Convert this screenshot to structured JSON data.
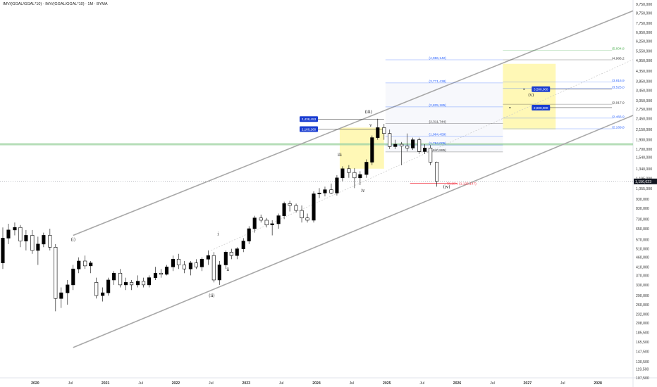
{
  "title": "IMV/(GGAL/GGAL*10) · IMV/(GGAL/GGAL*10) · 1M · BYMA",
  "chart_data": {
    "type": "candlestick",
    "y_scale": "log",
    "ylim": [
      107500,
      9750000
    ],
    "y_ticks": [
      "9,750,000",
      "8,750,000",
      "7,750,000",
      "6,950,000",
      "6,250,000",
      "5,550,000",
      "4,950,000",
      "4,350,000",
      "3,850,000",
      "3,450,000",
      "3,050,000",
      "2,750,000",
      "2,450,000",
      "2,150,000",
      "1,900,000",
      "1,700,000",
      "1,540,000",
      "1,340,000",
      "1,195,000",
      "1,055,000",
      "930,000",
      "830,000",
      "730,000",
      "650,000",
      "570,000",
      "510,000",
      "460,000",
      "410,000",
      "370,000",
      "330,000",
      "290,000",
      "260,000",
      "232,000",
      "208,000",
      "185,500",
      "165,500",
      "147,500",
      "130,500",
      "119,500",
      "107,500"
    ],
    "y_tick_values": [
      9750000,
      8750000,
      7750000,
      6950000,
      6250000,
      5550000,
      4950000,
      4350000,
      3850000,
      3450000,
      3050000,
      2750000,
      2450000,
      2150000,
      1900000,
      1700000,
      1540000,
      1340000,
      1195000,
      1055000,
      930000,
      830000,
      730000,
      650000,
      570000,
      510000,
      460000,
      410000,
      370000,
      330000,
      290000,
      260000,
      232000,
      208000,
      185500,
      165500,
      147500,
      130500,
      119500,
      107500
    ],
    "x_ticks": [
      {
        "label": "2020",
        "t": 2020.0,
        "year": true
      },
      {
        "label": "Jul",
        "t": 2020.5
      },
      {
        "label": "2021",
        "t": 2021.0,
        "year": true
      },
      {
        "label": "Jul",
        "t": 2021.5
      },
      {
        "label": "2022",
        "t": 2022.0,
        "year": true
      },
      {
        "label": "Jul",
        "t": 2022.5
      },
      {
        "label": "2023",
        "t": 2023.0,
        "year": true
      },
      {
        "label": "Jul",
        "t": 2023.5
      },
      {
        "label": "2024",
        "t": 2024.0,
        "year": true
      },
      {
        "label": "Jul",
        "t": 2024.5
      },
      {
        "label": "2025",
        "t": 2025.0,
        "year": true
      },
      {
        "label": "Jul",
        "t": 2025.5
      },
      {
        "label": "2026",
        "t": 2026.0,
        "year": true
      },
      {
        "label": "Jul",
        "t": 2026.5
      },
      {
        "label": "2027",
        "t": 2027.0,
        "year": true
      },
      {
        "label": "Jul",
        "t": 2027.5
      },
      {
        "label": "2028",
        "t": 2028.0,
        "year": true
      }
    ],
    "last_price": {
      "label": "1,150,023",
      "value": 1150023
    },
    "green_line": 1800000,
    "candles": [
      {
        "t": 2019.54,
        "o": 430000,
        "h": 660000,
        "l": 400000,
        "c": 580000
      },
      {
        "t": 2019.62,
        "o": 580000,
        "h": 690000,
        "l": 540000,
        "c": 640000
      },
      {
        "t": 2019.71,
        "o": 640000,
        "h": 700000,
        "l": 600000,
        "c": 660000
      },
      {
        "t": 2019.79,
        "o": 660000,
        "h": 680000,
        "l": 520000,
        "c": 560000
      },
      {
        "t": 2019.87,
        "o": 560000,
        "h": 640000,
        "l": 500000,
        "c": 600000
      },
      {
        "t": 2019.96,
        "o": 600000,
        "h": 640000,
        "l": 480000,
        "c": 500000
      },
      {
        "t": 2020.04,
        "o": 500000,
        "h": 590000,
        "l": 420000,
        "c": 540000
      },
      {
        "t": 2020.12,
        "o": 540000,
        "h": 620000,
        "l": 520000,
        "c": 600000
      },
      {
        "t": 2020.21,
        "o": 600000,
        "h": 650000,
        "l": 500000,
        "c": 520000
      },
      {
        "t": 2020.29,
        "o": 520000,
        "h": 540000,
        "l": 240000,
        "c": 280000
      },
      {
        "t": 2020.37,
        "o": 280000,
        "h": 320000,
        "l": 250000,
        "c": 300000
      },
      {
        "t": 2020.46,
        "o": 300000,
        "h": 350000,
        "l": 260000,
        "c": 330000
      },
      {
        "t": 2020.54,
        "o": 330000,
        "h": 420000,
        "l": 310000,
        "c": 400000
      },
      {
        "t": 2020.62,
        "o": 400000,
        "h": 460000,
        "l": 380000,
        "c": 440000
      },
      {
        "t": 2020.71,
        "o": 440000,
        "h": 470000,
        "l": 400000,
        "c": 415000
      },
      {
        "t": 2020.79,
        "o": 415000,
        "h": 440000,
        "l": 380000,
        "c": 430000
      },
      {
        "t": 2020.87,
        "o": 340000,
        "h": 360000,
        "l": 280000,
        "c": 290000
      },
      {
        "t": 2020.96,
        "o": 290000,
        "h": 320000,
        "l": 270000,
        "c": 300000
      },
      {
        "t": 2021.04,
        "o": 300000,
        "h": 360000,
        "l": 290000,
        "c": 350000
      },
      {
        "t": 2021.12,
        "o": 350000,
        "h": 390000,
        "l": 330000,
        "c": 380000
      },
      {
        "t": 2021.21,
        "o": 380000,
        "h": 400000,
        "l": 320000,
        "c": 330000
      },
      {
        "t": 2021.29,
        "o": 330000,
        "h": 360000,
        "l": 310000,
        "c": 340000
      },
      {
        "t": 2021.37,
        "o": 340000,
        "h": 350000,
        "l": 310000,
        "c": 330000
      },
      {
        "t": 2021.46,
        "o": 330000,
        "h": 370000,
        "l": 320000,
        "c": 345000
      },
      {
        "t": 2021.54,
        "o": 345000,
        "h": 360000,
        "l": 320000,
        "c": 330000
      },
      {
        "t": 2021.62,
        "o": 330000,
        "h": 370000,
        "l": 320000,
        "c": 360000
      },
      {
        "t": 2021.71,
        "o": 360000,
        "h": 410000,
        "l": 350000,
        "c": 380000
      },
      {
        "t": 2021.79,
        "o": 380000,
        "h": 400000,
        "l": 360000,
        "c": 375000
      },
      {
        "t": 2021.87,
        "o": 375000,
        "h": 420000,
        "l": 370000,
        "c": 410000
      },
      {
        "t": 2021.96,
        "o": 410000,
        "h": 470000,
        "l": 390000,
        "c": 450000
      },
      {
        "t": 2022.04,
        "o": 450000,
        "h": 480000,
        "l": 400000,
        "c": 420000
      },
      {
        "t": 2022.12,
        "o": 420000,
        "h": 440000,
        "l": 380000,
        "c": 400000
      },
      {
        "t": 2022.21,
        "o": 400000,
        "h": 440000,
        "l": 370000,
        "c": 430000
      },
      {
        "t": 2022.29,
        "o": 430000,
        "h": 450000,
        "l": 400000,
        "c": 410000
      },
      {
        "t": 2022.37,
        "o": 410000,
        "h": 460000,
        "l": 390000,
        "c": 450000
      },
      {
        "t": 2022.46,
        "o": 450000,
        "h": 500000,
        "l": 420000,
        "c": 470000
      },
      {
        "t": 2022.54,
        "o": 470000,
        "h": 490000,
        "l": 340000,
        "c": 350000
      },
      {
        "t": 2022.62,
        "o": 350000,
        "h": 440000,
        "l": 330000,
        "c": 420000
      },
      {
        "t": 2022.71,
        "o": 420000,
        "h": 500000,
        "l": 400000,
        "c": 490000
      },
      {
        "t": 2022.79,
        "o": 490000,
        "h": 510000,
        "l": 450000,
        "c": 470000
      },
      {
        "t": 2022.87,
        "o": 470000,
        "h": 520000,
        "l": 450000,
        "c": 510000
      },
      {
        "t": 2022.96,
        "o": 510000,
        "h": 580000,
        "l": 490000,
        "c": 560000
      },
      {
        "t": 2023.04,
        "o": 560000,
        "h": 670000,
        "l": 540000,
        "c": 650000
      },
      {
        "t": 2023.12,
        "o": 650000,
        "h": 760000,
        "l": 620000,
        "c": 740000
      },
      {
        "t": 2023.21,
        "o": 740000,
        "h": 770000,
        "l": 700000,
        "c": 720000
      },
      {
        "t": 2023.29,
        "o": 720000,
        "h": 740000,
        "l": 660000,
        "c": 680000
      },
      {
        "t": 2023.37,
        "o": 680000,
        "h": 720000,
        "l": 600000,
        "c": 690000
      },
      {
        "t": 2023.46,
        "o": 690000,
        "h": 780000,
        "l": 650000,
        "c": 760000
      },
      {
        "t": 2023.54,
        "o": 760000,
        "h": 900000,
        "l": 730000,
        "c": 880000
      },
      {
        "t": 2023.62,
        "o": 880000,
        "h": 910000,
        "l": 800000,
        "c": 860000
      },
      {
        "t": 2023.71,
        "o": 860000,
        "h": 880000,
        "l": 790000,
        "c": 810000
      },
      {
        "t": 2023.79,
        "o": 810000,
        "h": 860000,
        "l": 700000,
        "c": 740000
      },
      {
        "t": 2023.87,
        "o": 740000,
        "h": 780000,
        "l": 700000,
        "c": 720000
      },
      {
        "t": 2023.96,
        "o": 720000,
        "h": 1020000,
        "l": 700000,
        "c": 990000
      },
      {
        "t": 2024.04,
        "o": 990000,
        "h": 1060000,
        "l": 940000,
        "c": 1000000
      },
      {
        "t": 2024.12,
        "o": 1000000,
        "h": 1080000,
        "l": 960000,
        "c": 1040000
      },
      {
        "t": 2024.21,
        "o": 1040000,
        "h": 1120000,
        "l": 990000,
        "c": 1000000
      },
      {
        "t": 2024.29,
        "o": 1000000,
        "h": 1240000,
        "l": 970000,
        "c": 1200000
      },
      {
        "t": 2024.37,
        "o": 1200000,
        "h": 1380000,
        "l": 1150000,
        "c": 1340000
      },
      {
        "t": 2024.46,
        "o": 1340000,
        "h": 1400000,
        "l": 1200000,
        "c": 1280000
      },
      {
        "t": 2024.54,
        "o": 1280000,
        "h": 1350000,
        "l": 1060000,
        "c": 1200000
      },
      {
        "t": 2024.62,
        "o": 1200000,
        "h": 1300000,
        "l": 1100000,
        "c": 1250000
      },
      {
        "t": 2024.71,
        "o": 1250000,
        "h": 1500000,
        "l": 1200000,
        "c": 1450000
      },
      {
        "t": 2024.79,
        "o": 1450000,
        "h": 2000000,
        "l": 1400000,
        "c": 1950000
      },
      {
        "t": 2024.87,
        "o": 1950000,
        "h": 2450000,
        "l": 1900000,
        "c": 2200000
      },
      {
        "t": 2024.96,
        "o": 2200000,
        "h": 2300000,
        "l": 1900000,
        "c": 2050000
      },
      {
        "t": 2025.04,
        "o": 2050000,
        "h": 2150000,
        "l": 1700000,
        "c": 1750000
      },
      {
        "t": 2025.12,
        "o": 1750000,
        "h": 1900000,
        "l": 1700000,
        "c": 1800000
      },
      {
        "t": 2025.21,
        "o": 1800000,
        "h": 1850000,
        "l": 1400000,
        "c": 1760000
      },
      {
        "t": 2025.29,
        "o": 1760000,
        "h": 2050000,
        "l": 1650000,
        "c": 1720000
      },
      {
        "t": 2025.37,
        "o": 1720000,
        "h": 1950000,
        "l": 1680000,
        "c": 1900000
      },
      {
        "t": 2025.46,
        "o": 1900000,
        "h": 1950000,
        "l": 1600000,
        "c": 1650000
      },
      {
        "t": 2025.54,
        "o": 1650000,
        "h": 1800000,
        "l": 1600000,
        "c": 1720000
      },
      {
        "t": 2025.62,
        "o": 1720000,
        "h": 1780000,
        "l": 1400000,
        "c": 1450000
      },
      {
        "t": 2025.71,
        "o": 1450000,
        "h": 1460000,
        "l": 1080000,
        "c": 1150023
      }
    ],
    "channel_lines": [
      {
        "name": "upper",
        "t1": 2020.54,
        "v1": 600000,
        "t2": 2028.5,
        "v2": 9000000
      },
      {
        "name": "lower",
        "t1": 2020.54,
        "v1": 155000,
        "t2": 2028.5,
        "v2": 2550000
      },
      {
        "name": "median",
        "t1": 2022.5,
        "v1": 500000,
        "t2": 2028.5,
        "v2": 5000000
      }
    ],
    "wave_labels": [
      {
        "text": "(i)",
        "t": 2020.54,
        "v": 560000
      },
      {
        "text": "(ii)",
        "t": 2022.51,
        "v": 285000
      },
      {
        "text": "i",
        "t": 2022.6,
        "v": 600000
      },
      {
        "text": "ii",
        "t": 2022.74,
        "v": 390000
      },
      {
        "text": "iii",
        "t": 2024.33,
        "v": 1560000
      },
      {
        "text": "iv",
        "t": 2024.66,
        "v": 1010000
      },
      {
        "text": "v",
        "t": 2024.77,
        "v": 2230000
      },
      {
        "text": "(iii)",
        "t": 2024.74,
        "v": 2620000
      },
      {
        "text": "(iv)",
        "t": 2025.85,
        "v": 1060000
      },
      {
        "text": "(v)",
        "t": 2027.05,
        "v": 3200000
      }
    ],
    "fib_levels": [
      {
        "label": "(4,986,142)",
        "v": 4986142,
        "color": "#2962ff"
      },
      {
        "label": "(3,771,438)",
        "v": 3771438,
        "color": "#2962ff"
      },
      {
        "label": "(2,825,185)",
        "v": 2825185,
        "color": "#2962ff"
      },
      {
        "label": "(2,311,744)",
        "v": 2311744,
        "color": "#333333"
      },
      {
        "label": "(1,984,459)",
        "v": 1984459,
        "color": "#2962ff"
      },
      {
        "label": "(1,784,005)",
        "v": 1784005,
        "color": "#2962ff"
      },
      {
        "label": "(1,640,885)",
        "v": 1640885,
        "color": "#333333"
      }
    ],
    "fib_right_levels": [
      {
        "label": "(5,604,8",
        "v": 5604800,
        "color": "#4caf50"
      },
      {
        "label": "(4,986,2",
        "v": 4986200,
        "color": "#333333"
      },
      {
        "label": "(3,816,9",
        "v": 3816900,
        "color": "#2962ff"
      },
      {
        "label": "(3,525,0",
        "v": 3525000,
        "color": "#2962ff"
      },
      {
        "label": "(2,917,9",
        "v": 2917900,
        "color": "#333333"
      },
      {
        "label": "(2,466,9",
        "v": 2466900,
        "color": "#2962ff"
      },
      {
        "label": "(2,169,8",
        "v": 2169800,
        "color": "#2962ff"
      }
    ],
    "red_level": {
      "label": "78,20% (1,125,147)",
      "v": 1125147
    },
    "price_boxes": [
      {
        "label": "2,438,453",
        "v": 2438453,
        "t": 2024.0
      },
      {
        "label": "2,160,260",
        "v": 2160260,
        "t": 2024.0
      },
      {
        "label": "3,500,000",
        "v": 3500000,
        "t": 2027.3
      },
      {
        "label": "2,800,000",
        "v": 2800000,
        "t": 2027.3
      }
    ],
    "target_box": {
      "t1": 2026.65,
      "t2": 2027.4,
      "v1": 2150000,
      "v2": 4750000
    },
    "wave3_box": {
      "t1": 2024.33,
      "t2": 2024.96,
      "v1": 1340000,
      "v2": 2200000
    }
  }
}
